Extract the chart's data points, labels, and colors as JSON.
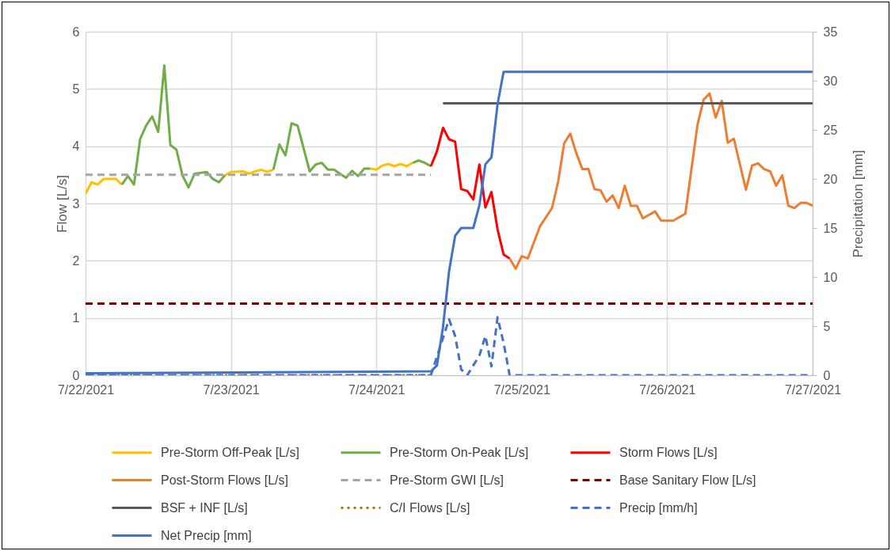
{
  "chart_data": {
    "type": "line",
    "ylabel": "Flow [L/s]",
    "y2label": "Precipitation [mm]",
    "xlim": [
      "2021-07-22",
      "2021-07-27"
    ],
    "xticks": [
      {
        "value": "2021-07-22",
        "label": "7/22/2021"
      },
      {
        "value": "2021-07-23",
        "label": "7/23/2021"
      },
      {
        "value": "2021-07-24",
        "label": "7/24/2021"
      },
      {
        "value": "2021-07-25",
        "label": "7/25/2021"
      },
      {
        "value": "2021-07-26",
        "label": "7/26/2021"
      },
      {
        "value": "2021-07-27",
        "label": "7/27/2021"
      }
    ],
    "ylim": [
      0,
      6
    ],
    "yticks": [
      0,
      1,
      2,
      3,
      4,
      5,
      6
    ],
    "y2lim": [
      0,
      35
    ],
    "y2ticks": [
      0,
      5,
      10,
      15,
      20,
      25,
      30,
      35
    ],
    "grid": true,
    "legend": "bottom",
    "series": [
      {
        "name": "Pre-Storm Off-Peak [L/s]",
        "color": "#ffc000",
        "line_style": "solid",
        "x": [
          "2021-07-22T00:00",
          "2021-07-22T01:00",
          "2021-07-22T02:00",
          "2021-07-22T03:00",
          "2021-07-22T05:00",
          "2021-07-22T06:00",
          "2021-07-22T12:00",
          "2021-07-22T23:00",
          "2021-07-23T00:00",
          "2021-07-23T02:00",
          "2021-07-23T03:00",
          "2021-07-23T04:00",
          "2021-07-23T05:00",
          "2021-07-23T06:00",
          "2021-07-23T07:00",
          "2021-07-23T15:00",
          "2021-07-23T23:00",
          "2021-07-24T00:00",
          "2021-07-24T01:00",
          "2021-07-24T02:00",
          "2021-07-24T03:00",
          "2021-07-24T04:00",
          "2021-07-24T05:00",
          "2021-07-24T06:00"
        ],
        "values": [
          3.17,
          3.37,
          3.33,
          3.43,
          3.43,
          3.33,
          null,
          3.49,
          3.55,
          3.56,
          3.52,
          3.56,
          3.59,
          3.55,
          3.59,
          null,
          3.61,
          3.59,
          3.66,
          3.69,
          3.65,
          3.69,
          3.65,
          3.71
        ]
      },
      {
        "name": "Pre-Storm On-Peak [L/s]",
        "color": "#70ad47",
        "line_style": "solid",
        "x": [
          "2021-07-22T06:00",
          "2021-07-22T07:00",
          "2021-07-22T08:00",
          "2021-07-22T09:00",
          "2021-07-22T10:00",
          "2021-07-22T11:00",
          "2021-07-22T12:00",
          "2021-07-22T13:00",
          "2021-07-22T14:00",
          "2021-07-22T15:00",
          "2021-07-22T16:00",
          "2021-07-22T17:00",
          "2021-07-22T18:00",
          "2021-07-22T20:00",
          "2021-07-22T21:00",
          "2021-07-22T22:00",
          "2021-07-22T23:00",
          "2021-07-23T03:00",
          "2021-07-23T07:00",
          "2021-07-23T08:00",
          "2021-07-23T09:00",
          "2021-07-23T10:00",
          "2021-07-23T11:00",
          "2021-07-23T13:00",
          "2021-07-23T14:00",
          "2021-07-23T15:00",
          "2021-07-23T16:00",
          "2021-07-23T17:00",
          "2021-07-23T19:00",
          "2021-07-23T20:00",
          "2021-07-23T21:00",
          "2021-07-23T22:00",
          "2021-07-23T23:00",
          "2021-07-24T02:00",
          "2021-07-24T06:00",
          "2021-07-24T07:00",
          "2021-07-24T08:00",
          "2021-07-24T09:00"
        ],
        "values": [
          3.33,
          3.48,
          3.33,
          4.12,
          4.36,
          4.52,
          4.25,
          5.41,
          4.02,
          3.94,
          3.49,
          3.28,
          3.52,
          3.55,
          3.43,
          3.37,
          3.49,
          null,
          3.59,
          4.03,
          3.84,
          4.4,
          4.36,
          3.56,
          3.68,
          3.71,
          3.59,
          3.59,
          3.45,
          3.57,
          3.48,
          3.61,
          3.61,
          null,
          3.71,
          3.75,
          3.71,
          3.65
        ]
      },
      {
        "name": "Storm Flows [L/s]",
        "color": "#ff0000",
        "line_style": "solid",
        "x": [
          "2021-07-24T09:00",
          "2021-07-24T10:00",
          "2021-07-24T11:00",
          "2021-07-24T12:00",
          "2021-07-24T13:00",
          "2021-07-24T14:00",
          "2021-07-24T15:00",
          "2021-07-24T16:00",
          "2021-07-24T17:00",
          "2021-07-24T18:00",
          "2021-07-24T19:00",
          "2021-07-24T20:00",
          "2021-07-24T21:00",
          "2021-07-24T22:00"
        ],
        "values": [
          3.65,
          3.91,
          4.32,
          4.12,
          4.08,
          3.25,
          3.22,
          3.07,
          3.68,
          2.93,
          3.2,
          2.55,
          2.11,
          2.04
        ]
      },
      {
        "name": "Post-Storm Flows [L/s]",
        "color": "#ed7d31",
        "line_style": "solid",
        "x": [
          "2021-07-24T22:00",
          "2021-07-24T23:00",
          "2021-07-25T00:00",
          "2021-07-25T01:00",
          "2021-07-25T03:00",
          "2021-07-25T05:00",
          "2021-07-25T06:00",
          "2021-07-25T07:00",
          "2021-07-25T08:00",
          "2021-07-25T09:00",
          "2021-07-25T10:00",
          "2021-07-25T11:00",
          "2021-07-25T12:00",
          "2021-07-25T13:00",
          "2021-07-25T14:00",
          "2021-07-25T15:00",
          "2021-07-25T16:00",
          "2021-07-25T17:00",
          "2021-07-25T18:00",
          "2021-07-25T19:00",
          "2021-07-25T20:00",
          "2021-07-25T22:00",
          "2021-07-25T23:00",
          "2021-07-26T01:00",
          "2021-07-26T03:00",
          "2021-07-26T05:00",
          "2021-07-26T06:00",
          "2021-07-26T07:00",
          "2021-07-26T08:00",
          "2021-07-26T09:00",
          "2021-07-26T10:00",
          "2021-07-26T11:00",
          "2021-07-26T13:00",
          "2021-07-26T14:00",
          "2021-07-26T15:00",
          "2021-07-26T16:00",
          "2021-07-26T17:00",
          "2021-07-26T18:00",
          "2021-07-26T19:00",
          "2021-07-26T20:00",
          "2021-07-26T21:00",
          "2021-07-26T22:00",
          "2021-07-26T23:00",
          "2021-07-27T00:00"
        ],
        "values": [
          2.04,
          1.86,
          2.08,
          2.04,
          2.6,
          2.92,
          3.38,
          4.05,
          4.22,
          3.88,
          3.6,
          3.6,
          3.25,
          3.23,
          3.03,
          3.14,
          2.92,
          3.31,
          2.96,
          2.96,
          2.74,
          2.86,
          2.7,
          2.7,
          2.82,
          4.37,
          4.81,
          4.92,
          4.5,
          4.79,
          4.06,
          4.13,
          3.24,
          3.66,
          3.7,
          3.6,
          3.56,
          3.31,
          3.49,
          2.96,
          2.92,
          3.01,
          3.01,
          2.96
        ]
      },
      {
        "name": "Pre-Storm GWI [L/s]",
        "color": "#a5a5a5",
        "line_style": "dashed",
        "x": [
          "2021-07-22T00:00",
          "2021-07-24T09:00"
        ],
        "values": [
          3.5,
          3.5
        ]
      },
      {
        "name": "Base Sanitary Flow [L/s]",
        "color": "#800000",
        "line_style": "dashed",
        "x": [
          "2021-07-22T00:00",
          "2021-07-27T00:00"
        ],
        "values": [
          1.25,
          1.25
        ]
      },
      {
        "name": "BSF + INF [L/s]",
        "color": "#595959",
        "line_style": "solid",
        "x": [
          "2021-07-24T11:00",
          "2021-07-27T00:00"
        ],
        "values": [
          4.75,
          4.75
        ]
      },
      {
        "name": "C/I Flows [L/s]",
        "color": "#a08000",
        "line_style": "dotted",
        "x": [
          "2021-07-22T00:00",
          "2021-07-24T09:00"
        ],
        "values": [
          0,
          0
        ]
      },
      {
        "name": "Precip [mm/h]",
        "color": "#4472c4",
        "line_style": "dashed",
        "axis": "y2",
        "x": [
          "2021-07-22T00:00",
          "2021-07-24T09:00",
          "2021-07-24T11:00",
          "2021-07-24T12:00",
          "2021-07-24T13:00",
          "2021-07-24T14:00",
          "2021-07-24T15:00",
          "2021-07-24T17:00",
          "2021-07-24T18:00",
          "2021-07-24T19:00",
          "2021-07-24T20:00",
          "2021-07-24T21:00",
          "2021-07-24T22:00",
          "2021-07-27T00:00"
        ],
        "values": [
          0,
          0,
          3.8,
          5.7,
          4.0,
          0.6,
          0,
          2.0,
          4.0,
          0.9,
          5.9,
          3.3,
          0,
          0
        ]
      },
      {
        "name": "Net Precip [mm]",
        "color": "#4472c4",
        "line_style": "solid",
        "axis": "y2",
        "x": [
          "2021-07-22T00:00",
          "2021-07-24T09:00",
          "2021-07-24T10:00",
          "2021-07-24T11:00",
          "2021-07-24T12:00",
          "2021-07-24T13:00",
          "2021-07-24T14:00",
          "2021-07-24T16:00",
          "2021-07-24T17:00",
          "2021-07-24T18:00",
          "2021-07-24T19:00",
          "2021-07-24T20:00",
          "2021-07-24T21:00",
          "2021-07-27T00:00"
        ],
        "values": [
          0.2,
          0.4,
          1.0,
          4.9,
          10.6,
          14.2,
          15.0,
          15.0,
          17.3,
          21.5,
          22.2,
          27.6,
          30.9,
          30.9
        ]
      }
    ]
  }
}
